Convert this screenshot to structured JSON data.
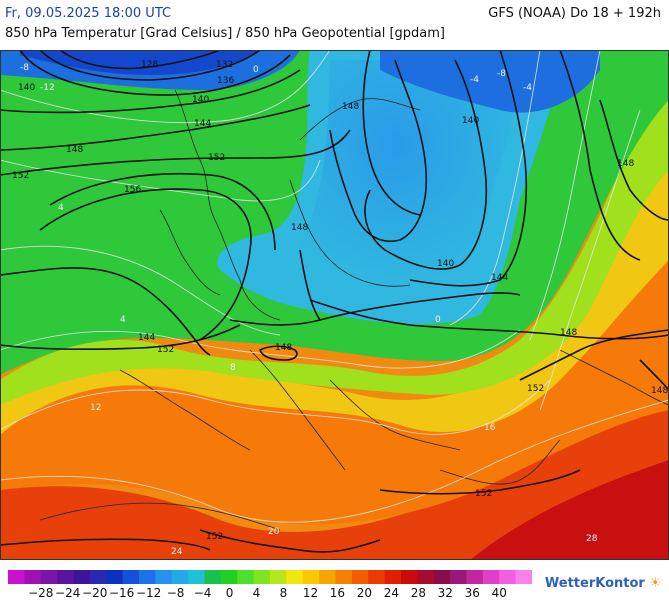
{
  "header": {
    "datetime": "Fr, 09.05.2025 18:00 UTC",
    "model_run": "GFS (NOAA) Do 18 + 192h",
    "parameters": "850 hPa Temperatur [Grad Celsius] / 850 hPa Geopotential [gpdam]"
  },
  "map": {
    "geopotential_labels": [
      "128",
      "132",
      "136",
      "140",
      "144",
      "148",
      "152",
      "156",
      "140",
      "148",
      "144",
      "140",
      "148",
      "152",
      "148",
      "148",
      "152",
      "140",
      "144",
      "148",
      "152",
      "152",
      "156",
      "152",
      "148"
    ],
    "temperature_labels": [
      "-12",
      "-8",
      "-4",
      "0",
      "4",
      "8",
      "12",
      "16",
      "20",
      "24",
      "28",
      "-8",
      "-4",
      "0",
      "4"
    ]
  },
  "colorbar": {
    "ticks": [
      "−28",
      "−24",
      "−20",
      "−16",
      "−12",
      "−8",
      "−4",
      "0",
      "4",
      "8",
      "12",
      "16",
      "20",
      "24",
      "28",
      "32",
      "36",
      "40"
    ],
    "colors": [
      "#cc10cc",
      "#a010b4",
      "#7d14a8",
      "#5a14a0",
      "#3c1498",
      "#2828b0",
      "#0f2fc0",
      "#1550d8",
      "#1c72e8",
      "#2592f0",
      "#22aae8",
      "#20c0d8",
      "#18c050",
      "#22d020",
      "#4ce028",
      "#80e41e",
      "#b4e81a",
      "#f0e80c",
      "#fcc800",
      "#faa400",
      "#f88000",
      "#f45c00",
      "#ec3a00",
      "#e01e00",
      "#c80c0c",
      "#a80c2c",
      "#8a0c48",
      "#9c1878",
      "#c028a0",
      "#e040c8",
      "#f060e0",
      "#fc80ec"
    ]
  },
  "brand": {
    "name": "WetterKontor",
    "sun": "☀"
  }
}
